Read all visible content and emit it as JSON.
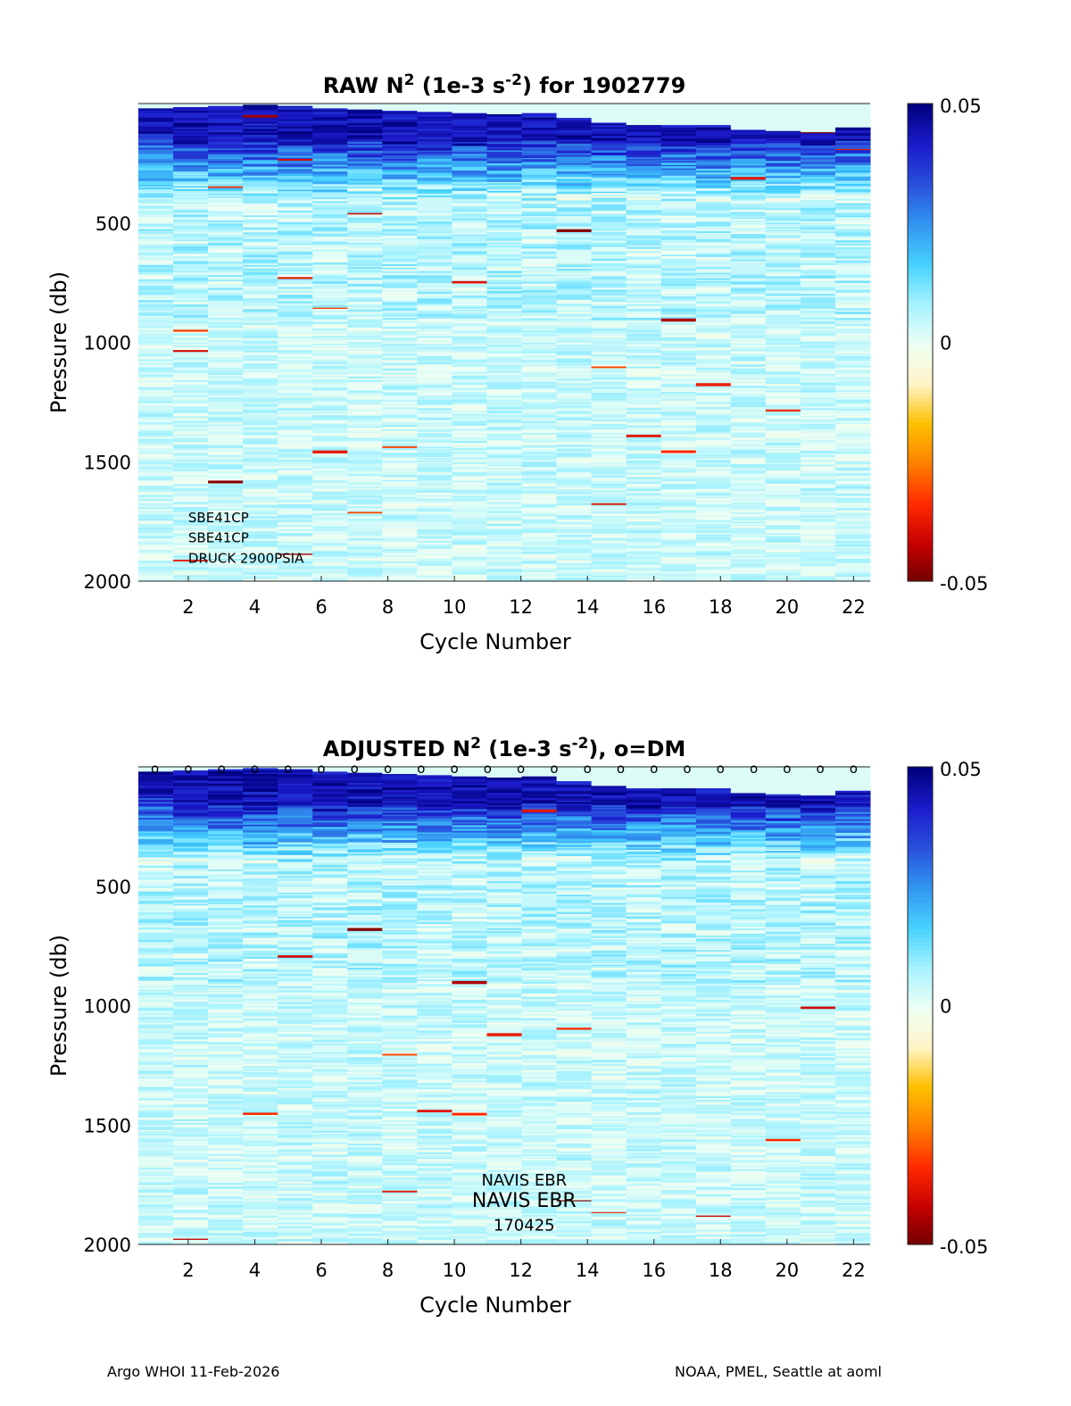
{
  "footer": {
    "left": "Argo WHOI 11-Feb-2026",
    "right": "NOAA, PMEL, Seattle at aoml"
  },
  "colormap": [
    "#6e0000",
    "#c80000",
    "#ff2a00",
    "#ff8000",
    "#ffc000",
    "#fff4c8",
    "#ecfff4",
    "#a6f2ff",
    "#46d2ff",
    "#3296f0",
    "#2850dc",
    "#1c1ccc",
    "#000080"
  ],
  "chart_data": [
    {
      "type": "heatmap",
      "id": "raw",
      "title_pre": "RAW N",
      "title_sup": "2",
      "title_mid": " (1e-3 s",
      "title_sup2": "-2",
      "title_post": ") for 1902779",
      "xlabel": "Cycle Number",
      "ylabel": "Pressure (db)",
      "xlim": [
        1,
        22
      ],
      "ylim": [
        2000,
        0
      ],
      "xticks": [
        2,
        4,
        6,
        8,
        10,
        12,
        14,
        16,
        18,
        20,
        22
      ],
      "yticks": [
        500,
        1000,
        1500,
        2000
      ],
      "clim": [
        -0.05,
        0.05
      ],
      "colorbar_ticks": [
        "0.05",
        "0",
        "-0.05"
      ],
      "surface_pressure_by_cycle": [
        20,
        15,
        10,
        5,
        10,
        20,
        25,
        30,
        35,
        40,
        45,
        40,
        60,
        80,
        90,
        90,
        90,
        110,
        115,
        120,
        100
      ],
      "mixed_layer_bottom_by_cycle": [
        120,
        160,
        160,
        160,
        160,
        160,
        160,
        160,
        160,
        160,
        160,
        150,
        160,
        160,
        160,
        160,
        160,
        160,
        160,
        160,
        150
      ],
      "dm_markers": null,
      "annotations": [
        {
          "text": "SBE41CP",
          "x": 2,
          "p": 1730,
          "size": "small"
        },
        {
          "text": "SBE41CP",
          "x": 2,
          "p": 1815,
          "size": "small"
        },
        {
          "text": "DRUCK 2900PSIA",
          "x": 2,
          "p": 1900,
          "size": "small"
        }
      ]
    },
    {
      "type": "heatmap",
      "id": "adjusted",
      "title_pre": "ADJUSTED N",
      "title_sup": "2",
      "title_mid": " (1e-3 s",
      "title_sup2": "-2",
      "title_post": "), o=DM",
      "xlabel": "Cycle Number",
      "ylabel": "Pressure (db)",
      "xlim": [
        1,
        22
      ],
      "ylim": [
        2000,
        0
      ],
      "xticks": [
        2,
        4,
        6,
        8,
        10,
        12,
        14,
        16,
        18,
        20,
        22
      ],
      "yticks": [
        500,
        1000,
        1500,
        2000
      ],
      "clim": [
        -0.05,
        0.05
      ],
      "colorbar_ticks": [
        "0.05",
        "0",
        "-0.05"
      ],
      "surface_pressure_by_cycle": [
        20,
        15,
        10,
        5,
        10,
        20,
        25,
        30,
        35,
        40,
        45,
        40,
        60,
        80,
        90,
        90,
        90,
        110,
        115,
        120,
        100
      ],
      "mixed_layer_bottom_by_cycle": [
        120,
        160,
        160,
        160,
        160,
        160,
        160,
        160,
        160,
        160,
        160,
        150,
        160,
        160,
        160,
        160,
        160,
        160,
        160,
        160,
        150
      ],
      "dm_markers": {
        "symbol": "o",
        "cycles": [
          1,
          2,
          3,
          4,
          5,
          6,
          7,
          8,
          9,
          10,
          11,
          12,
          13,
          14,
          15,
          16,
          17,
          18,
          19,
          20,
          21,
          22
        ],
        "p": 0
      },
      "annotations": [
        {
          "text": "NAVIS EBR",
          "x": 12.5,
          "p": 1730,
          "size": "mid"
        },
        {
          "text": "NAVIS EBR",
          "x": 12.5,
          "p": 1820,
          "size": "big"
        },
        {
          "text": "170425",
          "x": 12.5,
          "p": 1920,
          "size": "mid"
        }
      ]
    }
  ]
}
